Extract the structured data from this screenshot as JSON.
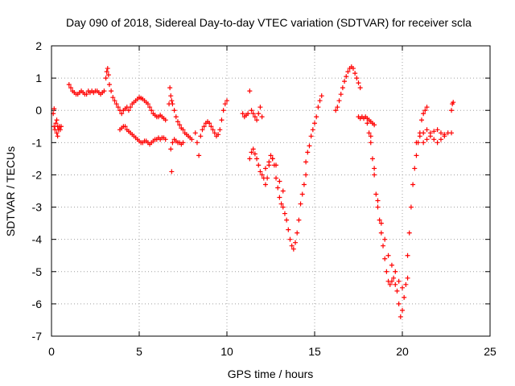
{
  "chart_data": {
    "type": "scatter",
    "title": "Day 090 of 2018, Sidereal Day-to-day VTEC variation (SDTVAR) for receiver scla",
    "xlabel": "GPS time / hours",
    "ylabel": "SDTVAR / TECUs",
    "xlim": [
      0,
      25
    ],
    "ylim": [
      -7,
      2
    ],
    "xticks": [
      0,
      5,
      10,
      15,
      20,
      25
    ],
    "yticks": [
      -7,
      -6,
      -5,
      -4,
      -3,
      -2,
      -1,
      0,
      1,
      2
    ],
    "grid": true,
    "marker": "+",
    "color": "#ff0000",
    "series": [
      {
        "name": "s1",
        "x": [
          0.15,
          0.2,
          0.25,
          0.3,
          0.35,
          0.4,
          0.45,
          0.5,
          0.55
        ],
        "y": [
          -0.5,
          -0.6,
          -0.4,
          -0.3,
          -0.5,
          -0.6,
          -0.5,
          -0.6,
          -0.5
        ]
      },
      {
        "name": "s2",
        "x": [
          0.3,
          0.35
        ],
        "y": [
          -0.7,
          -0.8
        ]
      },
      {
        "name": "s3",
        "x": [
          0.1,
          0.15
        ],
        "y": [
          -0.1,
          0.05
        ]
      },
      {
        "name": "s4",
        "x": [
          1.0,
          1.1,
          1.2,
          1.3,
          1.4,
          1.5,
          1.6,
          1.7,
          1.8,
          1.9,
          2.0,
          2.1,
          2.2,
          2.3,
          2.4,
          2.5,
          2.6,
          2.7,
          2.8,
          2.9,
          3.0
        ],
        "y": [
          0.8,
          0.7,
          0.6,
          0.55,
          0.5,
          0.5,
          0.55,
          0.6,
          0.55,
          0.5,
          0.5,
          0.6,
          0.55,
          0.6,
          0.55,
          0.6,
          0.6,
          0.55,
          0.5,
          0.55,
          0.6
        ]
      },
      {
        "name": "s5",
        "x": [
          3.1,
          3.15,
          3.2,
          3.25,
          3.3,
          3.4,
          3.5,
          3.6,
          3.7,
          3.8,
          3.9,
          4.0,
          4.1,
          4.2,
          4.3,
          4.4,
          4.5,
          4.6,
          4.7,
          4.8,
          4.9,
          5.0,
          5.1,
          5.2,
          5.3,
          5.4,
          5.5,
          5.6,
          5.7,
          5.8,
          5.9,
          6.0,
          6.1,
          6.2,
          6.3,
          6.4,
          6.5
        ],
        "y": [
          1.0,
          1.2,
          1.3,
          1.1,
          0.8,
          0.6,
          0.4,
          0.3,
          0.2,
          0.1,
          0.0,
          -0.1,
          0.0,
          0.05,
          0.1,
          0.0,
          0.1,
          0.2,
          0.25,
          0.3,
          0.35,
          0.4,
          0.38,
          0.35,
          0.3,
          0.25,
          0.2,
          0.1,
          0.0,
          -0.1,
          -0.15,
          -0.2,
          -0.2,
          -0.15,
          -0.2,
          -0.25,
          -0.3
        ]
      },
      {
        "name": "s6",
        "x": [
          3.9,
          4.0,
          4.1,
          4.2,
          4.3,
          4.4,
          4.5,
          4.6,
          4.7,
          4.8,
          4.9,
          5.0,
          5.1,
          5.2,
          5.3,
          5.4,
          5.5,
          5.6,
          5.7,
          5.8,
          5.9,
          6.0,
          6.1,
          6.2,
          6.3,
          6.4,
          6.5
        ],
        "y": [
          -0.6,
          -0.55,
          -0.5,
          -0.5,
          -0.6,
          -0.65,
          -0.7,
          -0.75,
          -0.8,
          -0.85,
          -0.9,
          -0.95,
          -1.0,
          -1.0,
          -0.95,
          -0.95,
          -1.0,
          -1.05,
          -1.0,
          -0.95,
          -0.9,
          -0.9,
          -0.85,
          -0.9,
          -0.85,
          -0.85,
          -0.9
        ]
      },
      {
        "name": "s7",
        "x": [
          6.8,
          6.85,
          6.9,
          7.0,
          7.1,
          7.2,
          7.3,
          7.4,
          7.5
        ],
        "y": [
          -1.2,
          -1.9,
          -1.0,
          -0.9,
          -0.95,
          -1.0,
          -1.0,
          -1.05,
          -1.0
        ]
      },
      {
        "name": "s8",
        "x": [
          6.7,
          6.75,
          6.8,
          6.85,
          6.9,
          7.0,
          7.1,
          7.2,
          7.3,
          7.4,
          7.5,
          7.6,
          7.7,
          7.8,
          7.9,
          8.0
        ],
        "y": [
          0.2,
          0.7,
          0.45,
          0.3,
          0.2,
          0.0,
          -0.2,
          -0.35,
          -0.45,
          -0.55,
          -0.6,
          -0.7,
          -0.75,
          -0.8,
          -0.85,
          -0.9
        ]
      },
      {
        "name": "s9",
        "x": [
          8.2,
          8.3,
          8.4,
          8.5,
          8.6,
          8.7,
          8.8,
          8.9,
          9.0,
          9.1,
          9.2,
          9.3,
          9.4,
          9.5,
          9.6,
          9.7,
          9.8,
          9.9,
          10.0
        ],
        "y": [
          -0.7,
          -1.0,
          -1.4,
          -0.8,
          -0.6,
          -0.5,
          -0.4,
          -0.35,
          -0.4,
          -0.5,
          -0.6,
          -0.7,
          -0.8,
          -0.75,
          -0.6,
          -0.3,
          0.0,
          0.2,
          0.3
        ]
      },
      {
        "name": "s10",
        "x": [
          10.9,
          11.0,
          11.1,
          11.2,
          11.3,
          11.4,
          11.5,
          11.6,
          11.7,
          11.8,
          11.9,
          12.0
        ],
        "y": [
          -0.1,
          -0.2,
          -0.15,
          -0.1,
          0.6,
          0.0,
          -0.1,
          -0.2,
          -0.3,
          -0.1,
          0.1,
          -0.2
        ]
      },
      {
        "name": "s11",
        "x": [
          11.3,
          11.4,
          11.5,
          11.6,
          11.7,
          11.8,
          11.9,
          12.0,
          12.1,
          12.2,
          12.3,
          12.4,
          12.5,
          12.6,
          12.7,
          12.8,
          12.9,
          13.0,
          13.1,
          13.2,
          13.3,
          13.4,
          13.5,
          13.6,
          13.7,
          13.8,
          13.9,
          14.0,
          14.1,
          14.2,
          14.3,
          14.4,
          14.5
        ],
        "y": [
          -1.5,
          -1.3,
          -1.2,
          -1.35,
          -1.5,
          -1.7,
          -1.9,
          -2.0,
          -2.1,
          -2.3,
          -2.1,
          -1.7,
          -1.4,
          -1.5,
          -1.7,
          -2.1,
          -2.4,
          -2.7,
          -2.9,
          -3.0,
          -3.2,
          -3.4,
          -3.7,
          -4.0,
          -4.2,
          -4.3,
          -4.1,
          -3.8,
          -3.4,
          -2.9,
          -2.6,
          -2.3,
          -2.0
        ]
      },
      {
        "name": "s12",
        "x": [
          12.2,
          12.4,
          12.6,
          12.8,
          13.0,
          13.2
        ],
        "y": [
          -1.8,
          -1.6,
          -1.5,
          -1.7,
          -2.2,
          -2.5
        ]
      },
      {
        "name": "s13",
        "x": [
          14.5,
          14.6,
          14.7,
          14.8,
          14.9,
          15.0,
          15.1,
          15.2,
          15.3,
          15.4
        ],
        "y": [
          -1.6,
          -1.3,
          -1.1,
          -0.8,
          -0.6,
          -0.4,
          -0.2,
          0.1,
          0.3,
          0.45
        ]
      },
      {
        "name": "s14",
        "x": [
          16.2,
          16.3,
          16.4,
          16.5,
          16.6,
          16.7,
          16.8,
          16.9,
          17.0,
          17.1,
          17.2,
          17.3,
          17.4,
          17.5,
          17.6
        ],
        "y": [
          0.0,
          0.1,
          0.3,
          0.5,
          0.7,
          0.9,
          1.05,
          1.2,
          1.3,
          1.35,
          1.3,
          1.15,
          1.0,
          0.85,
          0.7
        ]
      },
      {
        "name": "s15",
        "x": [
          17.5,
          17.6,
          17.7,
          17.8,
          17.9,
          18.0,
          18.1,
          18.2,
          18.3,
          18.4
        ],
        "y": [
          -0.2,
          -0.25,
          -0.2,
          -0.25,
          -0.2,
          -0.25,
          -0.3,
          -0.35,
          -0.4,
          -0.45
        ]
      },
      {
        "name": "s16",
        "x": [
          18.0,
          18.1,
          18.2,
          18.3,
          18.4,
          18.5,
          18.6,
          18.7,
          18.8,
          18.9,
          19.0,
          19.1,
          19.2,
          19.3,
          19.4,
          19.5,
          19.6,
          19.7,
          19.8,
          19.9,
          20.0,
          20.1,
          20.2,
          20.3
        ],
        "y": [
          -0.4,
          -0.7,
          -1.0,
          -1.5,
          -2.0,
          -2.6,
          -3.0,
          -3.4,
          -3.8,
          -4.2,
          -4.6,
          -5.0,
          -5.3,
          -5.4,
          -5.3,
          -5.2,
          -5.4,
          -5.6,
          -6.0,
          -6.4,
          -6.2,
          -5.8,
          -5.4,
          -5.2
        ]
      },
      {
        "name": "s17",
        "x": [
          18.2,
          18.4,
          18.6,
          18.8,
          19.0,
          19.2,
          19.4,
          19.6,
          19.8,
          20.0
        ],
        "y": [
          -0.8,
          -1.8,
          -2.8,
          -3.5,
          -4.0,
          -4.5,
          -4.8,
          -5.0,
          -5.3,
          -5.5
        ]
      },
      {
        "name": "s18",
        "x": [
          20.3,
          20.4,
          20.5,
          20.6,
          20.7,
          20.8,
          20.9,
          21.0,
          21.1,
          21.2,
          21.3,
          21.4
        ],
        "y": [
          -4.5,
          -3.8,
          -3.0,
          -2.3,
          -1.8,
          -1.4,
          -1.0,
          -0.7,
          -0.3,
          -0.1,
          0.0,
          0.1
        ]
      },
      {
        "name": "s19",
        "x": [
          20.8,
          21.0,
          21.2,
          21.4,
          21.6,
          21.8,
          22.0,
          22.2,
          22.4,
          22.6,
          22.8
        ],
        "y": [
          -1.0,
          -0.8,
          -0.7,
          -0.6,
          -0.7,
          -0.65,
          -0.6,
          -0.7,
          -0.75,
          -0.7,
          -0.7
        ]
      },
      {
        "name": "s20",
        "x": [
          21.2,
          21.4,
          21.6,
          21.8,
          22.0,
          22.2,
          22.4
        ],
        "y": [
          -1.0,
          -0.9,
          -0.8,
          -0.9,
          -1.0,
          -0.9,
          -0.8
        ]
      },
      {
        "name": "s21",
        "x": [
          22.8,
          22.85,
          22.9
        ],
        "y": [
          0.0,
          0.2,
          0.25
        ]
      }
    ]
  }
}
